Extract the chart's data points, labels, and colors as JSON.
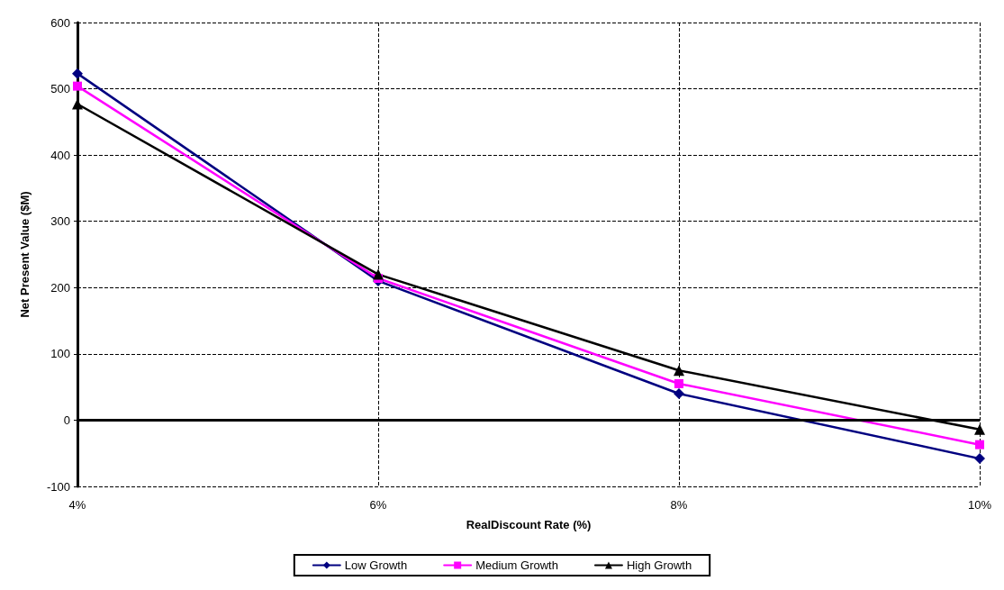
{
  "chart_data": {
    "type": "line",
    "xlabel": "RealDiscount Rate (%)",
    "ylabel": "Net Present Value ($M)",
    "categories": [
      "4%",
      "6%",
      "8%",
      "10%"
    ],
    "series": [
      {
        "name": "Low Growth",
        "color": "#000080",
        "marker": "diamond",
        "values": [
          523,
          210,
          40,
          -58
        ]
      },
      {
        "name": "Medium Growth",
        "color": "#ff00ff",
        "marker": "square",
        "values": [
          504,
          214,
          55,
          -37
        ]
      },
      {
        "name": "High Growth",
        "color": "#000000",
        "marker": "triangle",
        "values": [
          477,
          220,
          75,
          -14
        ]
      }
    ],
    "ylim": [
      -100,
      600
    ],
    "yticks": [
      -100,
      0,
      100,
      200,
      300,
      400,
      500,
      600
    ],
    "grid": true,
    "legend": "bottom",
    "ref_lines": [
      {
        "axis": "y",
        "value": 0,
        "color": "#000000"
      }
    ]
  }
}
